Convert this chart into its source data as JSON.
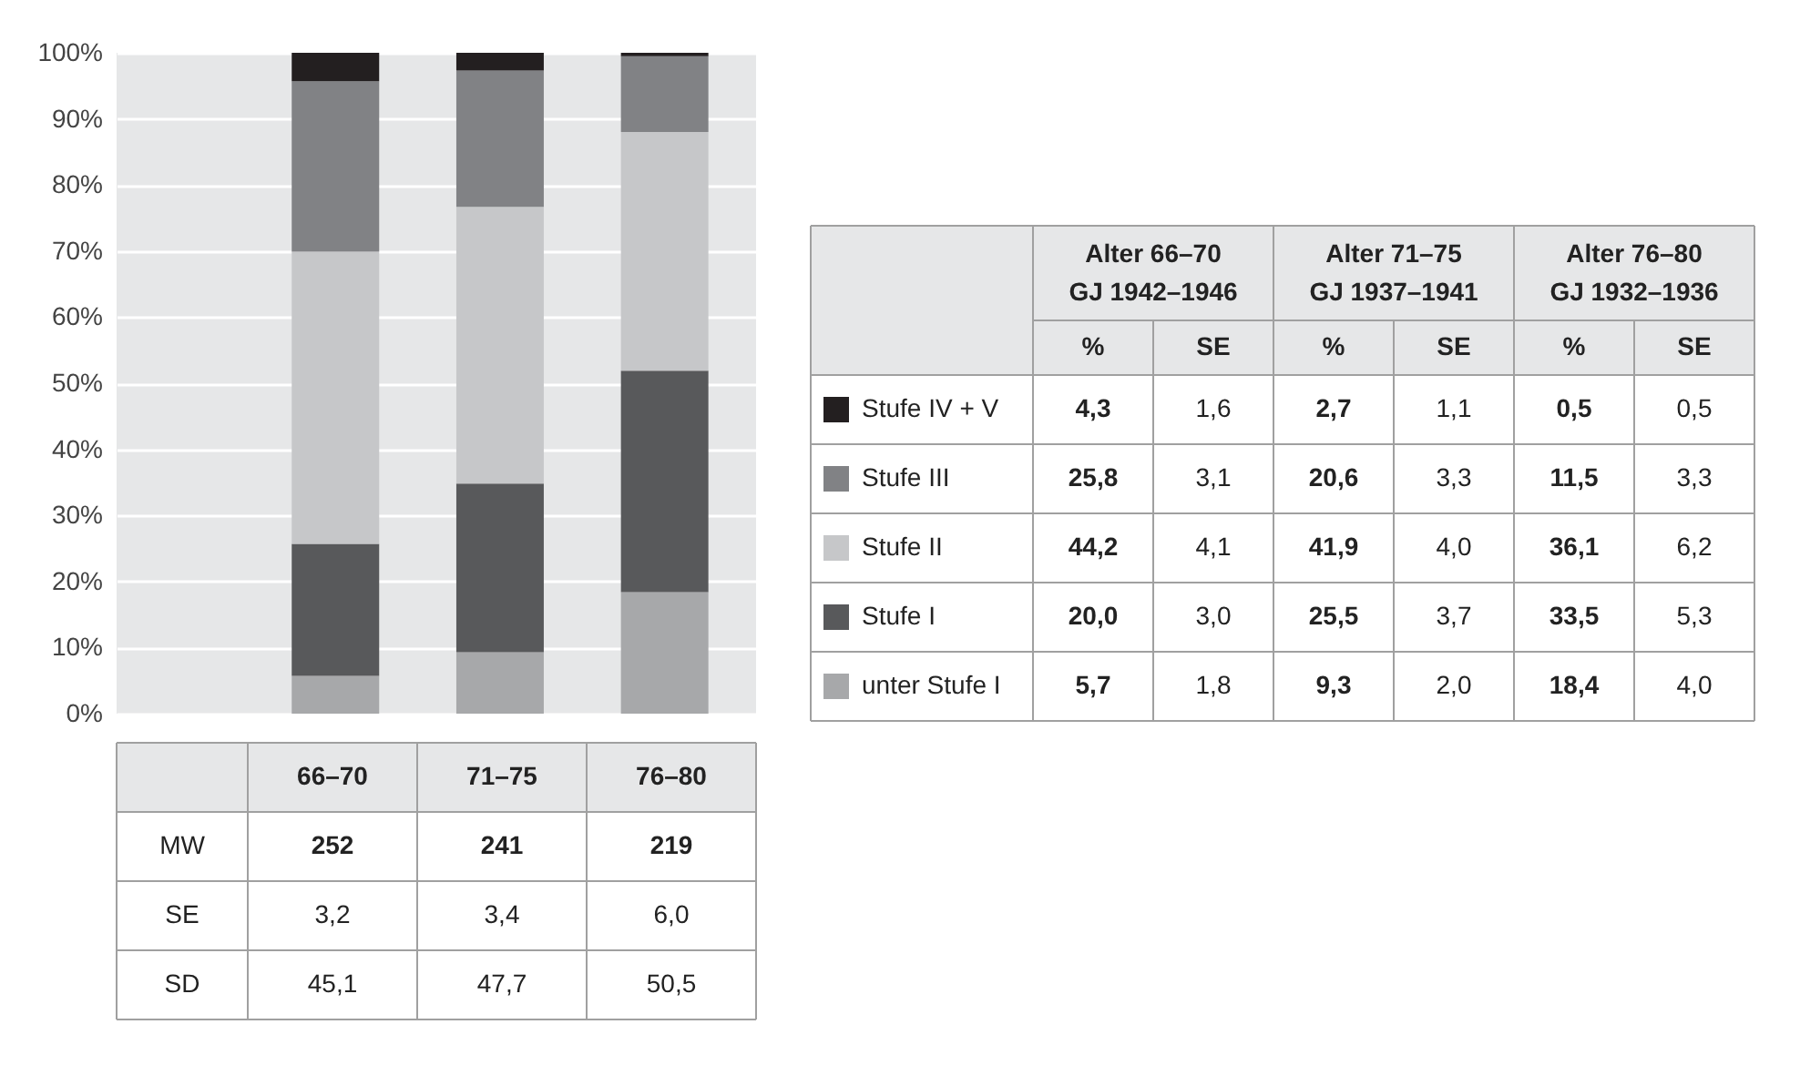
{
  "chart_data": [
    {
      "type": "bar",
      "stacked": true,
      "categories": [
        "66–70",
        "71–75",
        "76–80"
      ],
      "series": [
        {
          "name": "unter Stufe I",
          "color": "#a7a8aa",
          "values": [
            5.7,
            9.3,
            18.4
          ]
        },
        {
          "name": "Stufe I",
          "color": "#58595b",
          "values": [
            20.0,
            25.5,
            33.5
          ]
        },
        {
          "name": "Stufe II",
          "color": "#c6c7c9",
          "values": [
            44.2,
            41.9,
            36.1
          ]
        },
        {
          "name": "Stufe III",
          "color": "#818285",
          "values": [
            25.8,
            20.6,
            11.5
          ]
        },
        {
          "name": "Stufe IV + V",
          "color": "#231f20",
          "values": [
            4.3,
            2.7,
            0.5
          ]
        }
      ],
      "ylim": [
        0,
        100
      ],
      "yticks": [
        {
          "value": 0,
          "label": "0%"
        },
        {
          "value": 10,
          "label": "10%"
        },
        {
          "value": 20,
          "label": "20%"
        },
        {
          "value": 30,
          "label": "30%"
        },
        {
          "value": 40,
          "label": "40%"
        },
        {
          "value": 50,
          "label": "50%"
        },
        {
          "value": 60,
          "label": "60%"
        },
        {
          "value": 70,
          "label": "70%"
        },
        {
          "value": 80,
          "label": "80%"
        },
        {
          "value": 90,
          "label": "90%"
        },
        {
          "value": 100,
          "label": "100%"
        }
      ],
      "grid": "y",
      "legend": "right"
    },
    {
      "type": "other",
      "annotations": [
        "Alter 66–70",
        "GJ 1942–1946",
        "Alter 71–75",
        "GJ 1937–1941",
        "Alter 76–80",
        "GJ 1932–1936"
      ],
      "categories": [
        "%",
        "SE",
        "%",
        "SE",
        "%",
        "SE"
      ],
      "cell_labels": [
        [
          "4,3",
          "1,6",
          "2,7",
          "1,1",
          "0,5",
          "0,5"
        ],
        [
          "25,8",
          "3,1",
          "20,6",
          "3,3",
          "11,5",
          "3,3"
        ],
        [
          "44,2",
          "4,1",
          "41,9",
          "4,0",
          "36,1",
          "6,2"
        ],
        [
          "20,0",
          "3,0",
          "25,5",
          "3,7",
          "33,5",
          "5,3"
        ],
        [
          "5,7",
          "1,8",
          "9,3",
          "2,0",
          "18,4",
          "4,0"
        ]
      ]
    },
    {
      "type": "other",
      "y_categories": [
        "MW",
        "SE",
        "SD"
      ],
      "cell_labels": [
        [
          "252",
          "241",
          "219"
        ],
        [
          "3,2",
          "3,4",
          "6,0"
        ],
        [
          "45,1",
          "47,7",
          "50,5"
        ]
      ]
    }
  ]
}
